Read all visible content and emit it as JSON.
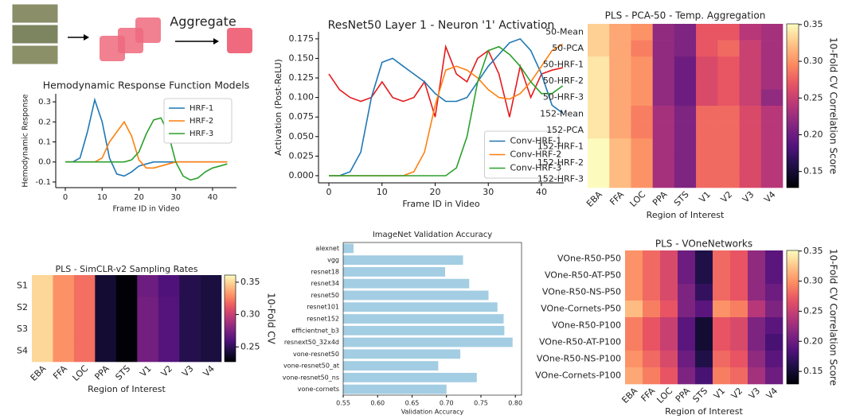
{
  "diagram": {
    "label": "Aggregate"
  },
  "chart_data": [
    {
      "type": "line",
      "title": "Hemodynamic Response Function Models",
      "xlabel": "Frame ID in Video",
      "ylabel": "Hemodynamic Response",
      "x": [
        0,
        2,
        4,
        6,
        8,
        10,
        12,
        14,
        16,
        18,
        20,
        22,
        24,
        26,
        28,
        30,
        32,
        34,
        36,
        38,
        40,
        42,
        44
      ],
      "series": [
        {
          "name": "HRF-1",
          "color": "#1f77b4",
          "values": [
            0,
            0,
            0.02,
            0.15,
            0.31,
            0.2,
            0.02,
            -0.06,
            -0.07,
            -0.05,
            -0.02,
            -0.01,
            0,
            0,
            0,
            0,
            0,
            0,
            0,
            0,
            0,
            0,
            0
          ]
        },
        {
          "name": "HRF-2",
          "color": "#ff7f0e",
          "values": [
            0,
            0,
            0,
            0,
            0,
            0.02,
            0.1,
            0.15,
            0.2,
            0.13,
            0.01,
            -0.03,
            -0.03,
            -0.02,
            -0.01,
            0,
            0,
            0,
            0,
            0,
            0,
            0,
            0
          ]
        },
        {
          "name": "HRF-3",
          "color": "#2ca02c",
          "values": [
            0,
            0,
            0,
            0,
            0,
            0,
            0,
            0,
            0,
            0.01,
            0.05,
            0.14,
            0.21,
            0.22,
            0.14,
            0,
            -0.07,
            -0.09,
            -0.08,
            -0.05,
            -0.03,
            -0.02,
            -0.01
          ]
        }
      ],
      "xlim": [
        -2.6,
        46.5
      ],
      "xticks": [
        0,
        10,
        20,
        30,
        40
      ],
      "ylim": [
        -0.128,
        0.34
      ],
      "yticks": [
        -0.1,
        {
          "value": 0,
          "label": "0.0"
        },
        0.1,
        0.2,
        0.3
      ],
      "legend": "upper right"
    },
    {
      "type": "line",
      "title": "ResNet50 Layer 1 - Neuron '1' Activation",
      "xlabel": "Frame ID in Video",
      "ylabel": "Activation (Post-ReLU)",
      "x": [
        0,
        2,
        4,
        6,
        8,
        10,
        12,
        14,
        16,
        18,
        20,
        22,
        24,
        26,
        28,
        30,
        32,
        34,
        36,
        38,
        40,
        42,
        44
      ],
      "series": [
        {
          "color": "#e41a1c",
          "values": [
            0.13,
            0.11,
            0.1,
            0.095,
            0.1,
            0.12,
            0.1,
            0.095,
            0.1,
            0.12,
            0.075,
            0.165,
            0.13,
            0.12,
            0.15,
            0.16,
            0.13,
            0.075,
            0.14,
            0.1,
            0.13,
            0.135,
            0.138
          ]
        },
        {
          "name": "Conv-HRF-1",
          "color": "#1f77b4",
          "values": [
            0,
            0,
            0.005,
            0.03,
            0.1,
            0.145,
            0.15,
            0.14,
            0.13,
            0.12,
            0.105,
            0.095,
            0.095,
            0.1,
            0.12,
            0.14,
            0.155,
            0.17,
            0.175,
            0.16,
            0.13,
            0.09,
            0.08
          ]
        },
        {
          "name": "Conv-HRF-2",
          "color": "#ff7f0e",
          "values": [
            0,
            0,
            0,
            0,
            0,
            0,
            0,
            0,
            0.005,
            0.03,
            0.09,
            0.135,
            0.14,
            0.135,
            0.125,
            0.11,
            0.1,
            0.098,
            0.105,
            0.12,
            0.14,
            0.16,
            0.168
          ]
        },
        {
          "name": "Conv-HRF-3",
          "color": "#2ca02c",
          "values": [
            0,
            0,
            0,
            0,
            0,
            0,
            0,
            0,
            0,
            0,
            0,
            0,
            0.01,
            0.05,
            0.12,
            0.16,
            0.165,
            0.155,
            0.14,
            0.12,
            0.105,
            0.105,
            0.115
          ]
        }
      ],
      "xlim": [
        -1.95,
        44.2
      ],
      "xticks": [
        0,
        10,
        20,
        30,
        40
      ],
      "ylim": [
        -0.0092,
        0.184
      ],
      "yticks": [
        {
          "value": 0,
          "label": "0.000"
        },
        0.025,
        {
          "value": 0.05,
          "label": "0.050"
        },
        0.075,
        {
          "value": 0.1,
          "label": "0.100"
        },
        0.125,
        {
          "value": 0.15,
          "label": "0.150"
        },
        0.175
      ],
      "legend": "lower right"
    },
    {
      "type": "heatmap",
      "title": "PLS - PCA-50 - Temp. Aggregation",
      "xlabel": "Region of Interest",
      "colorbar_label": "10-Fold CV Correlation Score",
      "colormap": "magma",
      "columns": [
        "EBA",
        "FFA",
        "LOC",
        "PPA",
        "STS",
        "V1",
        "V2",
        "V3",
        "V4"
      ],
      "rows": [
        "50-Mean",
        "50-PCA",
        "50-HRF-1",
        "50-HRF-2",
        "50-HRF-3",
        "152-Mean",
        "152-PCA",
        "152-HRF-1",
        "152-HRF-2",
        "152-HRF-3"
      ],
      "values": [
        [
          0.33,
          0.31,
          0.3,
          0.22,
          0.21,
          0.27,
          0.27,
          0.24,
          0.23
        ],
        [
          0.33,
          0.31,
          0.29,
          0.22,
          0.21,
          0.27,
          0.28,
          0.25,
          0.23
        ],
        [
          0.34,
          0.31,
          0.3,
          0.22,
          0.2,
          0.26,
          0.27,
          0.25,
          0.23
        ],
        [
          0.34,
          0.31,
          0.3,
          0.22,
          0.2,
          0.26,
          0.27,
          0.25,
          0.23
        ],
        [
          0.34,
          0.31,
          0.3,
          0.22,
          0.2,
          0.26,
          0.27,
          0.25,
          0.22
        ],
        [
          0.34,
          0.31,
          0.29,
          0.23,
          0.21,
          0.28,
          0.28,
          0.26,
          0.24
        ],
        [
          0.34,
          0.31,
          0.29,
          0.23,
          0.21,
          0.28,
          0.28,
          0.26,
          0.24
        ],
        [
          0.35,
          0.32,
          0.3,
          0.23,
          0.21,
          0.28,
          0.28,
          0.26,
          0.24
        ],
        [
          0.35,
          0.32,
          0.3,
          0.23,
          0.21,
          0.28,
          0.28,
          0.26,
          0.24
        ],
        [
          0.35,
          0.32,
          0.3,
          0.23,
          0.21,
          0.28,
          0.28,
          0.26,
          0.24
        ]
      ],
      "clim": [
        0.128,
        0.351
      ],
      "cticks": [
        0.15,
        {
          "value": 0.2,
          "label": "0.20"
        },
        0.25,
        {
          "value": 0.3,
          "label": "0.30"
        },
        0.35
      ]
    },
    {
      "type": "heatmap",
      "title": "PLS - SimCLR-v2 Sampling Rates",
      "xlabel": "Region of Interest",
      "colorbar_label": "10-Fold CV",
      "colormap": "magma",
      "columns": [
        "EBA",
        "FFA",
        "LOC",
        "PPA",
        "STS",
        "V1",
        "V2",
        "V3",
        "V4"
      ],
      "rows": [
        "S1",
        "S2",
        "S3",
        "S4"
      ],
      "values": [
        [
          0.35,
          0.33,
          0.32,
          0.24,
          0.228,
          0.27,
          0.26,
          0.247,
          0.243
        ],
        [
          0.35,
          0.33,
          0.32,
          0.24,
          0.228,
          0.272,
          0.262,
          0.247,
          0.243
        ],
        [
          0.35,
          0.33,
          0.32,
          0.24,
          0.228,
          0.272,
          0.262,
          0.247,
          0.243
        ],
        [
          0.35,
          0.33,
          0.32,
          0.24,
          0.228,
          0.272,
          0.262,
          0.247,
          0.243
        ]
      ],
      "clim": [
        0.227,
        0.361
      ],
      "cticks": [
        0.25,
        {
          "value": 0.3,
          "label": "0.30"
        },
        0.35
      ]
    },
    {
      "type": "bar",
      "title": "ImageNet Validation Accuracy",
      "xlabel": "Validation Accuracy",
      "color": "#a3cde3",
      "categories": [
        "alexnet",
        "vgg",
        "resnet18",
        "resnet34",
        "resnet50",
        "resnet101",
        "resnet152",
        "efficientnet_b3",
        "resnext50_32x4d",
        "vone-resnet50",
        "vone-resnet50_at",
        "vone-resnet50_ns",
        "vone-cornets"
      ],
      "values": [
        0.565,
        0.724,
        0.698,
        0.733,
        0.761,
        0.774,
        0.783,
        0.784,
        0.796,
        0.72,
        0.688,
        0.744,
        0.7
      ],
      "xlim": [
        0.55,
        0.809
      ],
      "xticks": [
        0.55,
        {
          "value": 0.6,
          "label": "0.60"
        },
        0.65,
        {
          "value": 0.7,
          "label": "0.70"
        },
        0.75,
        {
          "value": 0.8,
          "label": "0.80"
        }
      ]
    },
    {
      "type": "heatmap",
      "title": "PLS - VOneNetworks",
      "xlabel": "Region of Interest",
      "colorbar_label": "10-Fold CV Correlation Score",
      "colormap": "magma",
      "columns": [
        "EBA",
        "FFA",
        "LOC",
        "PPA",
        "STS",
        "V1",
        "V2",
        "V3",
        "V4"
      ],
      "rows": [
        "VOne-R50-P50",
        "VOne-R50-AT-P50",
        "VOne-R50-NS-P50",
        "VOne-Cornets-P50",
        "VOne-R50-P100",
        "VOne-R50-AT-P100",
        "VOne-R50-NS-P100",
        "VOne-Cornets-P100"
      ],
      "values": [
        [
          0.3,
          0.28,
          0.26,
          0.2,
          0.16,
          0.28,
          0.27,
          0.22,
          0.19
        ],
        [
          0.3,
          0.28,
          0.26,
          0.2,
          0.16,
          0.28,
          0.27,
          0.22,
          0.19
        ],
        [
          0.3,
          0.28,
          0.26,
          0.21,
          0.17,
          0.28,
          0.27,
          0.22,
          0.2
        ],
        [
          0.32,
          0.29,
          0.27,
          0.21,
          0.19,
          0.3,
          0.29,
          0.24,
          0.21
        ],
        [
          0.29,
          0.27,
          0.25,
          0.19,
          0.15,
          0.27,
          0.26,
          0.21,
          0.19
        ],
        [
          0.29,
          0.27,
          0.25,
          0.19,
          0.15,
          0.27,
          0.26,
          0.21,
          0.18
        ],
        [
          0.3,
          0.28,
          0.26,
          0.2,
          0.16,
          0.28,
          0.27,
          0.22,
          0.19
        ],
        [
          0.31,
          0.29,
          0.27,
          0.21,
          0.18,
          0.29,
          0.28,
          0.23,
          0.2
        ]
      ],
      "clim": [
        0.129,
        0.351
      ],
      "cticks": [
        0.15,
        {
          "value": 0.2,
          "label": "0.20"
        },
        0.25,
        {
          "value": 0.3,
          "label": "0.30"
        },
        0.35
      ]
    }
  ]
}
